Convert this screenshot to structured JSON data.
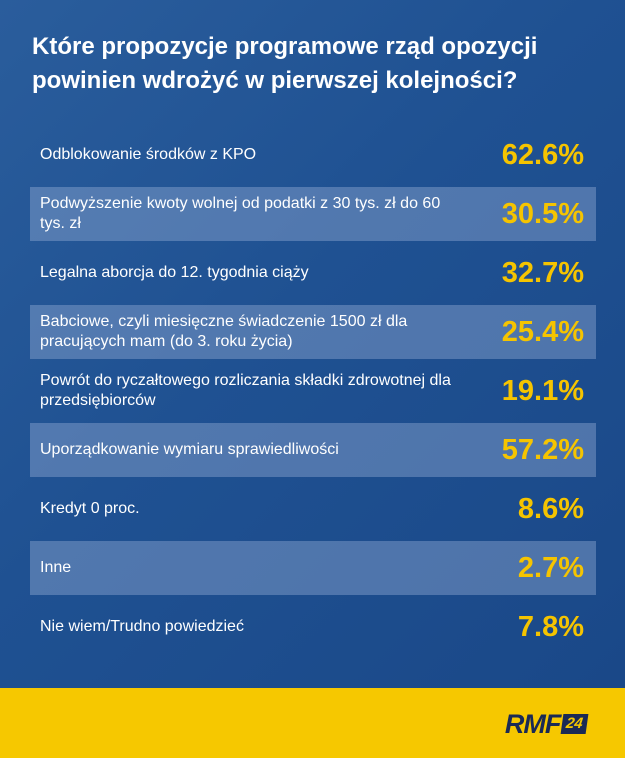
{
  "chart_data": {
    "type": "table",
    "title": "Które propozycje programowe rząd opozycji powinien wdrożyć w pierwszej kolejności?",
    "rows": [
      {
        "label": "Odblokowanie środków z KPO",
        "value": "62.6%"
      },
      {
        "label": "Podwyższenie kwoty wolnej od podatki z 30 tys. zł do 60 tys. zł",
        "value": "30.5%"
      },
      {
        "label": "Legalna aborcja do 12. tygodnia ciąży",
        "value": "32.7%"
      },
      {
        "label": "Babciowe, czyli miesięczne świadczenie 1500 zł dla pracujących mam (do 3. roku życia)",
        "value": "25.4%"
      },
      {
        "label": "Powrót do ryczałtowego rozliczania składki zdrowotnej dla przedsiębiorców",
        "value": "19.1%"
      },
      {
        "label": "Uporządkowanie wymiaru sprawiedliwości",
        "value": "57.2%"
      },
      {
        "label": "Kredyt 0 proc.",
        "value": "8.6%"
      },
      {
        "label": "Inne",
        "value": "2.7%"
      },
      {
        "label": "Nie wiem/Trudno powiedzieć",
        "value": "7.8%"
      }
    ]
  },
  "footer": {
    "logo_text": "RMF",
    "logo_number": "24"
  },
  "colors": {
    "background": "#1f5192",
    "accent": "#f5c400",
    "footer": "#f6c800"
  }
}
